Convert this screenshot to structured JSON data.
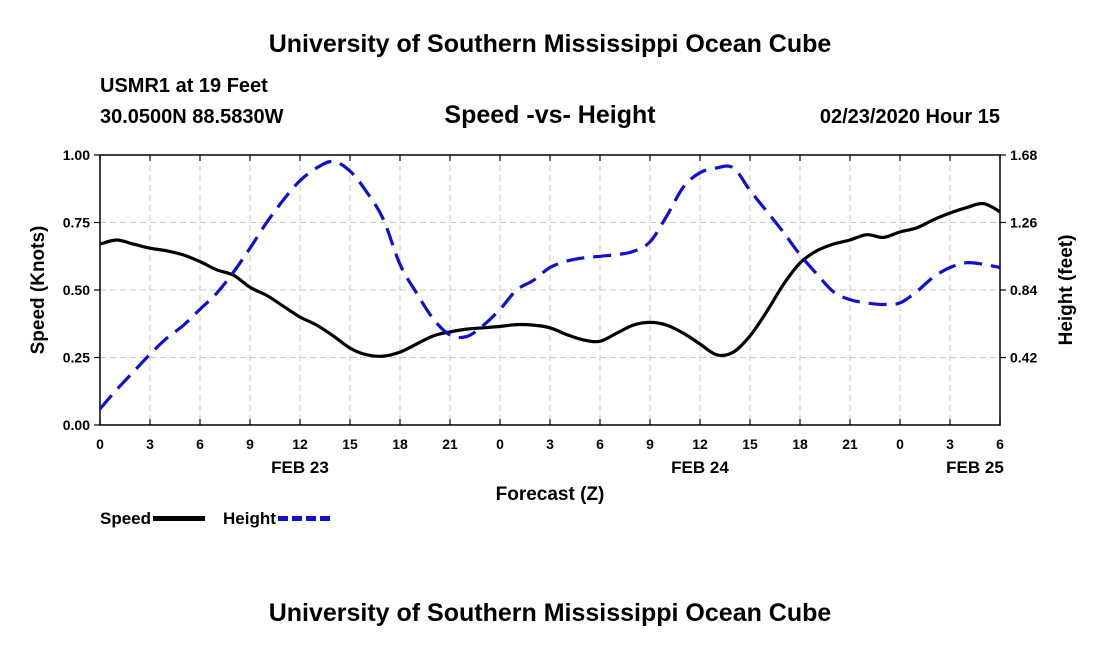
{
  "header": {
    "title": "University of Southern Mississippi Ocean Cube",
    "station": "USMR1 at 19 Feet",
    "coordinates": "30.0500N 88.5830W",
    "chart_title": "Speed -vs- Height",
    "datetime": "02/23/2020 Hour 15"
  },
  "footer": {
    "title": "University of Southern Mississippi Ocean Cube"
  },
  "legend": {
    "speed_label": "Speed",
    "height_label": "Height"
  },
  "colors": {
    "speed": "#000000",
    "height": "#1010d0",
    "grid": "#c8c8c8"
  },
  "chart_data": {
    "type": "line",
    "title": "Speed -vs- Height",
    "xlabel": "Forecast (Z)",
    "ylabel": "Speed (Knots)",
    "y2label": "Height (feet)",
    "x_range": [
      0,
      54
    ],
    "ylim": [
      0,
      1.0
    ],
    "y2lim": [
      0,
      1.68
    ],
    "x_ticks": [
      0,
      3,
      6,
      9,
      12,
      15,
      18,
      21,
      24,
      27,
      30,
      33,
      36,
      39,
      42,
      45,
      48,
      51,
      54
    ],
    "x_tick_labels": [
      "0",
      "3",
      "6",
      "9",
      "12",
      "15",
      "18",
      "21",
      "0",
      "3",
      "6",
      "9",
      "12",
      "15",
      "18",
      "21",
      "0",
      "3",
      "6"
    ],
    "date_labels": [
      {
        "x": 12,
        "label": "FEB 23"
      },
      {
        "x": 36,
        "label": "FEB 24"
      },
      {
        "x": 52.5,
        "label": "FEB 25"
      }
    ],
    "y_ticks": [
      0.0,
      0.25,
      0.5,
      0.75,
      1.0
    ],
    "y_tick_labels": [
      "0.00",
      "0.25",
      "0.50",
      "0.75",
      "1.00"
    ],
    "y2_ticks": [
      0.42,
      0.84,
      1.26,
      1.68
    ],
    "y2_tick_labels": [
      "0.42",
      "0.84",
      "1.26",
      "1.68"
    ],
    "grid": true,
    "legend_position": "bottom-left",
    "series": [
      {
        "name": "Speed",
        "axis": "left",
        "style": "solid",
        "x": [
          0,
          1,
          2,
          3,
          4,
          5,
          6,
          7,
          8,
          9,
          10,
          11,
          12,
          13,
          14,
          15,
          16,
          17,
          18,
          19,
          20,
          21,
          22,
          23,
          24,
          25,
          26,
          27,
          28,
          29,
          30,
          31,
          32,
          33,
          34,
          35,
          36,
          37,
          38,
          39,
          40,
          41,
          42,
          43,
          44,
          45,
          46,
          47,
          48,
          49,
          50,
          51,
          52,
          53,
          54
        ],
        "y": [
          0.67,
          0.685,
          0.67,
          0.655,
          0.645,
          0.63,
          0.605,
          0.575,
          0.555,
          0.51,
          0.48,
          0.44,
          0.4,
          0.37,
          0.33,
          0.285,
          0.26,
          0.255,
          0.27,
          0.3,
          0.33,
          0.345,
          0.355,
          0.36,
          0.365,
          0.372,
          0.37,
          0.36,
          0.335,
          0.315,
          0.31,
          0.34,
          0.37,
          0.38,
          0.37,
          0.34,
          0.3,
          0.26,
          0.27,
          0.33,
          0.42,
          0.52,
          0.6,
          0.645,
          0.67,
          0.685,
          0.705,
          0.695,
          0.715,
          0.73,
          0.76,
          0.785,
          0.805,
          0.82,
          0.79
        ]
      },
      {
        "name": "Height",
        "axis": "right",
        "style": "dashed",
        "x": [
          0,
          1,
          2,
          3,
          4,
          5,
          6,
          7,
          8,
          9,
          10,
          11,
          12,
          13,
          14,
          15,
          16,
          17,
          18,
          19,
          20,
          21,
          22,
          23,
          24,
          25,
          26,
          27,
          28,
          29,
          30,
          31,
          32,
          33,
          34,
          35,
          36,
          37,
          38,
          39,
          40,
          41,
          42,
          43,
          44,
          45,
          46,
          47,
          48,
          49,
          50,
          51,
          52,
          53,
          54
        ],
        "y": [
          0.1,
          0.22,
          0.33,
          0.44,
          0.54,
          0.62,
          0.72,
          0.82,
          0.95,
          1.1,
          1.26,
          1.4,
          1.52,
          1.6,
          1.64,
          1.58,
          1.45,
          1.28,
          1.0,
          0.82,
          0.66,
          0.56,
          0.55,
          0.62,
          0.72,
          0.84,
          0.9,
          0.98,
          1.02,
          1.04,
          1.05,
          1.06,
          1.08,
          1.14,
          1.3,
          1.48,
          1.57,
          1.6,
          1.6,
          1.46,
          1.33,
          1.2,
          1.06,
          0.94,
          0.83,
          0.78,
          0.76,
          0.75,
          0.76,
          0.83,
          0.92,
          0.98,
          1.01,
          1.0,
          0.98
        ]
      }
    ]
  }
}
